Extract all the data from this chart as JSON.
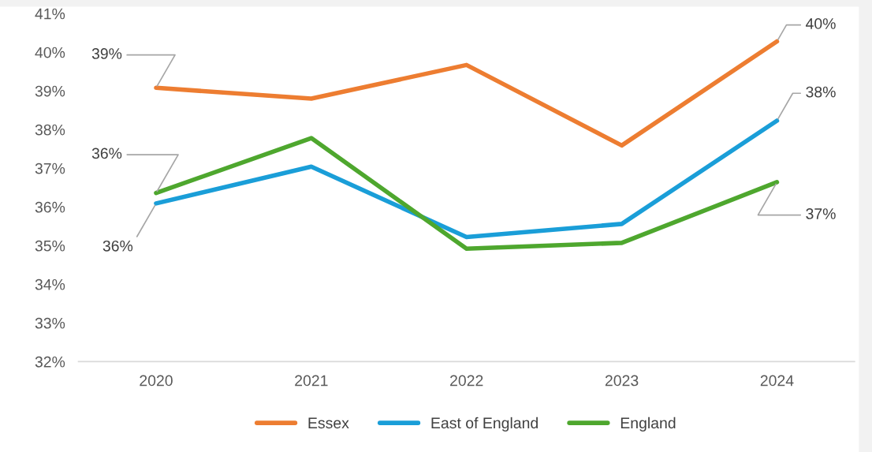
{
  "chart_data": {
    "type": "line",
    "categories": [
      "2020",
      "2021",
      "2022",
      "2023",
      "2024"
    ],
    "series": [
      {
        "name": "Essex",
        "color": "#ed7d31",
        "values": [
          39.08,
          38.8,
          39.67,
          37.59,
          40.28
        ],
        "value_labels": [
          "39%",
          null,
          null,
          null,
          "40%"
        ]
      },
      {
        "name": "East of England",
        "color": "#1a9ed8",
        "values": [
          36.09,
          37.04,
          35.22,
          35.56,
          38.23
        ],
        "value_labels": [
          "36%",
          null,
          null,
          null,
          "38%"
        ]
      },
      {
        "name": "England",
        "color": "#4ea72e",
        "values": [
          36.36,
          37.78,
          34.92,
          35.07,
          36.64
        ],
        "value_labels": [
          "36%",
          null,
          null,
          null,
          "37%"
        ]
      }
    ],
    "ylim": [
      32,
      41
    ],
    "yticks": [
      {
        "value": 32,
        "label": "32%"
      },
      {
        "value": 33,
        "label": "33%"
      },
      {
        "value": 34,
        "label": "34%"
      },
      {
        "value": 35,
        "label": "35%"
      },
      {
        "value": 36,
        "label": "36%"
      },
      {
        "value": 37,
        "label": "37%"
      },
      {
        "value": 38,
        "label": "38%"
      },
      {
        "value": 39,
        "label": "39%"
      },
      {
        "value": 40,
        "label": "40%"
      },
      {
        "value": 41,
        "label": "41%"
      }
    ],
    "grid": false,
    "legend": "bottom",
    "marker": "none",
    "line_style": "solid"
  }
}
